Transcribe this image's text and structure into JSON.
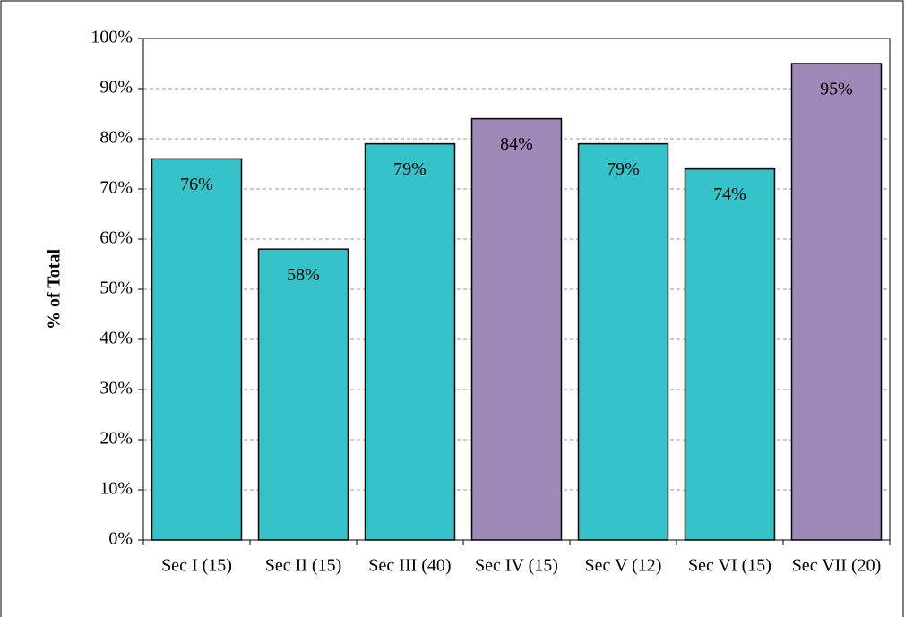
{
  "chart_data": {
    "type": "bar",
    "y_label": "% of Total",
    "categories": [
      "Sec I (15)",
      "Sec II (15)",
      "Sec III (40)",
      "Sec IV (15)",
      "Sec V (12)",
      "Sec VI (15)",
      "Sec VII (20)"
    ],
    "values": [
      76,
      58,
      79,
      84,
      79,
      74,
      95
    ],
    "value_labels": [
      "76%",
      "58%",
      "79%",
      "84%",
      "79%",
      "74%",
      "95%"
    ],
    "colors": [
      "#33c3c9",
      "#33c3c9",
      "#33c3c9",
      "#9e89b8",
      "#33c3c9",
      "#33c3c9",
      "#9e89b8"
    ],
    "ylim": [
      0,
      100
    ],
    "yticks": [
      {
        "value": 0,
        "label": "0%"
      },
      {
        "value": 10,
        "label": "10%"
      },
      {
        "value": 20,
        "label": "20%"
      },
      {
        "value": 30,
        "label": "30%"
      },
      {
        "value": 40,
        "label": "40%"
      },
      {
        "value": 50,
        "label": "50%"
      },
      {
        "value": 60,
        "label": "60%"
      },
      {
        "value": 70,
        "label": "70%"
      },
      {
        "value": 80,
        "label": "80%"
      },
      {
        "value": 90,
        "label": "90%"
      },
      {
        "value": 100,
        "label": "100%"
      }
    ],
    "grid": true
  }
}
